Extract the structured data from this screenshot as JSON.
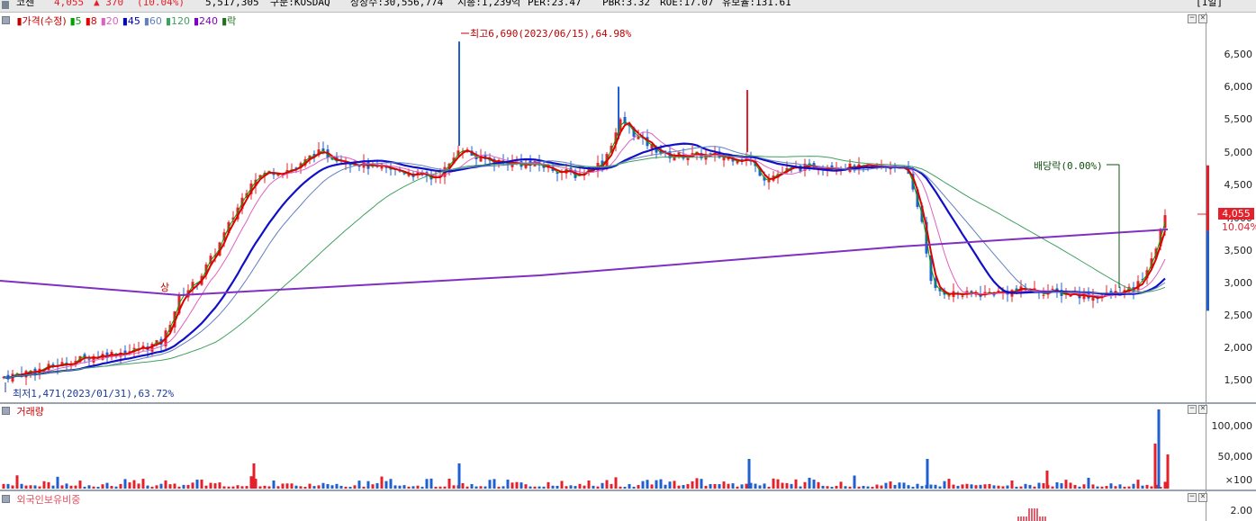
{
  "header": {
    "name": "코센",
    "price": "4,055",
    "change": "▲ 370",
    "change_pct": "(10.04%)",
    "volume": "5,517,305",
    "market": "구분:KOSDAQ",
    "listed_shares": "상장수:30,556,774",
    "market_cap": "시총:1,239억",
    "per": "PER:23.47",
    "pbr": "PBR:3.32",
    "roe": "ROE:17.07",
    "retention": "유보율:131.61",
    "period": "[1일]"
  },
  "price_pane": {
    "legend": [
      {
        "label": "가격(수정)",
        "color": "#c00000"
      },
      {
        "label": "5",
        "color": "#00a000"
      },
      {
        "label": "8",
        "color": "#e00000"
      },
      {
        "label": "20",
        "color": "#e060c0"
      },
      {
        "label": "45",
        "color": "#0000c0"
      },
      {
        "label": "60",
        "color": "#6080c0"
      },
      {
        "label": "120",
        "color": "#40a060"
      },
      {
        "label": "240",
        "color": "#8000c0"
      },
      {
        "label": "락",
        "color": "#207020"
      }
    ],
    "y_ticks": [
      "6,500",
      "6,000",
      "5,500",
      "5,000",
      "4,500",
      "4,000",
      "3,500",
      "3,000",
      "2,500",
      "2,000",
      "1,500"
    ],
    "current_price_label": "4,055",
    "current_pct_label": "10.04%",
    "high_annotation": "최고6,690(2023/06/15),64.98%",
    "low_annotation": "최저1,471(2023/01/31),63.72%",
    "dividend_annotation": "배당락(0.00%)",
    "listing_marker": "상"
  },
  "volume_pane": {
    "title": "거래량",
    "y_ticks": [
      "100,000",
      "50,000",
      "×100"
    ]
  },
  "foreign_pane": {
    "title": "외국인보유비중",
    "y_ticks": [
      "2.00"
    ]
  },
  "colors": {
    "up": "#e4202b",
    "down": "#1f5fd0",
    "ma240": "#8030c0",
    "ma45": "#1010c8"
  },
  "chart_data": {
    "type": "candlestick",
    "title": "코센",
    "y_range": [
      1350,
      6900
    ],
    "series": [
      {
        "name": "가격(수정)",
        "high": 6690,
        "low": 1471,
        "last": 4055
      }
    ]
  }
}
